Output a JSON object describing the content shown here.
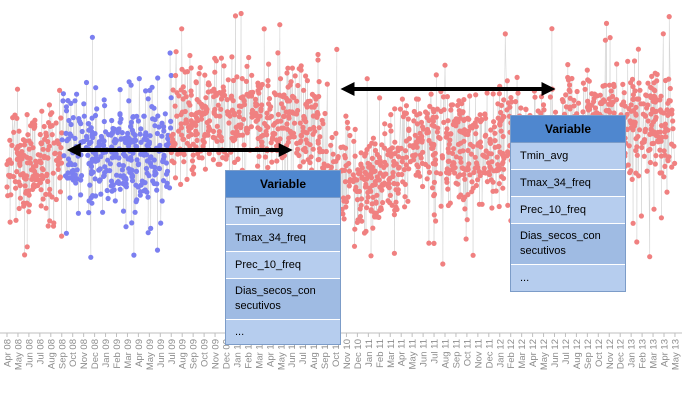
{
  "chart_data": {
    "type": "scatter",
    "title": "",
    "xlabel": "",
    "ylabel": "",
    "x_ticks": [
      "Apr 08",
      "May 08",
      "Jun 08",
      "Jul 08",
      "Aug 08",
      "Sep 08",
      "Oct 08",
      "Nov 08",
      "Dec 08",
      "Jan 09",
      "Feb 09",
      "Mar 09",
      "Apr 09",
      "May 09",
      "Jun 09",
      "Jul 09",
      "Aug 09",
      "Sep 09",
      "Oct 09",
      "Nov 09",
      "Dec 09",
      "Jan 10",
      "Feb 10",
      "Mar 10",
      "Apr 10",
      "May 10",
      "Jun 10",
      "Jul 10",
      "Aug 10",
      "Sep 10",
      "Oct 10",
      "Nov 10",
      "Dec 10",
      "Jan 11",
      "Feb 11",
      "Mar 11",
      "Apr 11",
      "May 11",
      "Jun 11",
      "Jul 11",
      "Aug 11",
      "Sep 11",
      "Oct 11",
      "Nov 11",
      "Dec 11",
      "Jan 12",
      "Feb 12",
      "Mar 12",
      "Apr 12",
      "May 12",
      "Jun 12",
      "Jul 12",
      "Aug 12",
      "Sep 12",
      "Oct 12",
      "Nov 12",
      "Dec 12",
      "Jan 13",
      "Feb 13",
      "Mar 13",
      "Apr 13",
      "May 13"
    ],
    "ylim": [
      0,
      100
    ],
    "series": [
      {
        "color": "#f08080",
        "periods": [
          [
            "Apr 08",
            "Sep 08"
          ],
          [
            "Jul 09",
            "May 13"
          ]
        ]
      },
      {
        "color": "#7b7ff0",
        "periods": [
          [
            "Sep 08",
            "Jul 09"
          ]
        ]
      }
    ],
    "annotations": [
      {
        "type": "double-arrow",
        "from": "Sep 08",
        "to": "Jun 10"
      },
      {
        "type": "double-arrow",
        "from": "Oct 10",
        "to": "Jun 12"
      }
    ],
    "grid": false,
    "legend": "none"
  },
  "tables": [
    {
      "header": "Variable",
      "rows": [
        "Tmin_avg",
        "Tmax_34_freq",
        "Prec_10_freq",
        "Dias_secos_con secutivos",
        "..."
      ]
    },
    {
      "header": "Variable",
      "rows": [
        "Tmin_avg",
        "Tmax_34_freq",
        "Prec_10_freq",
        "Dias_secos_con secutivos",
        "..."
      ]
    }
  ],
  "colors": {
    "series_red": "#f08080",
    "series_blue": "#7b7ff0",
    "table_header": "#4f87cf",
    "table_body": "#a7c1e6",
    "arrow": "#000000"
  }
}
